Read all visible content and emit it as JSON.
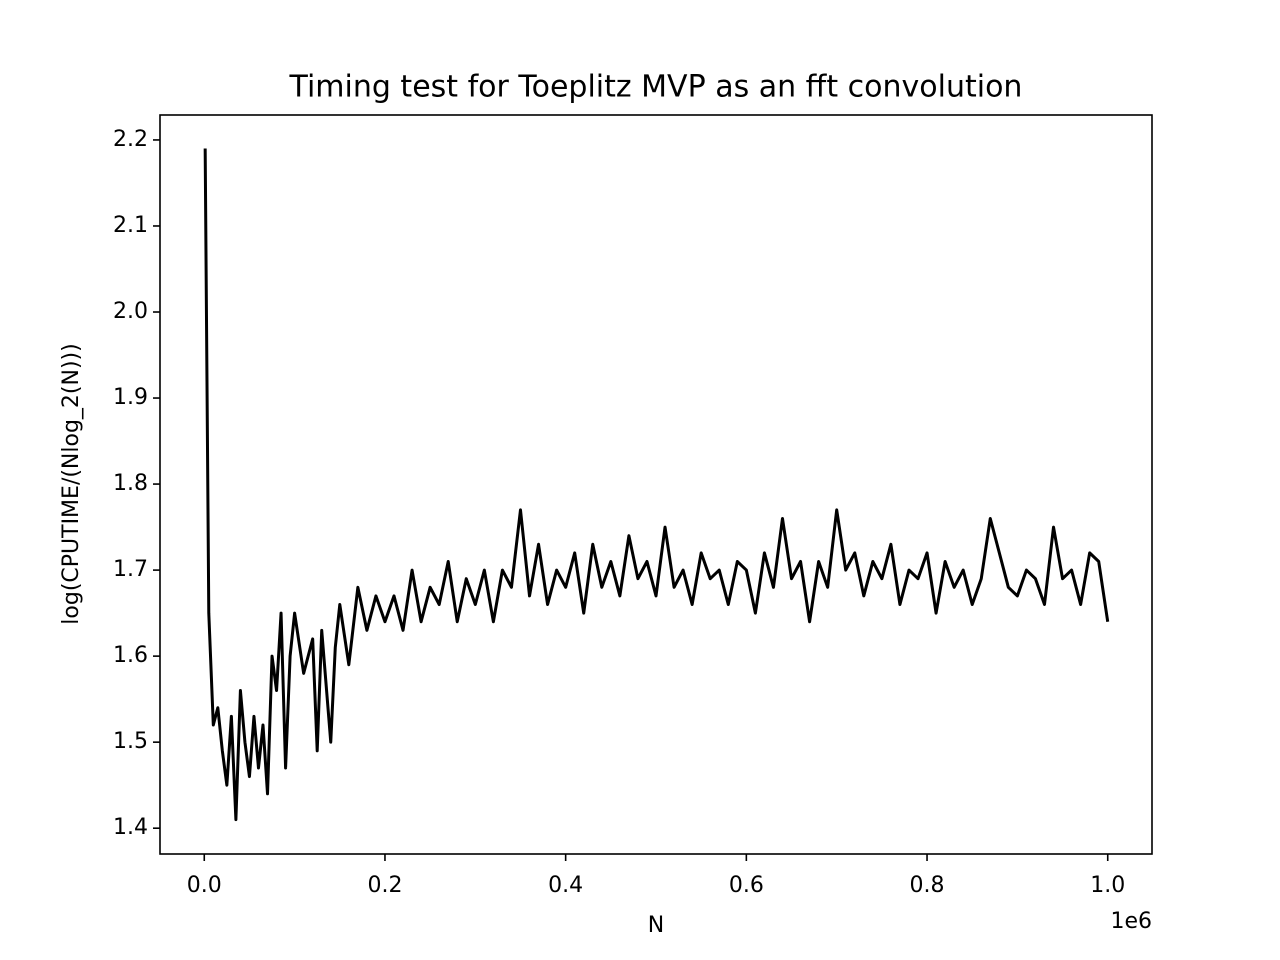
{
  "chart_data": {
    "type": "line",
    "title": "Timing test for Toeplitz MVP as an fft convolution",
    "x_label": "N",
    "y_label": "log(CPUTIME/(Nlog_2(N)))",
    "x_offset_label": "1e6",
    "color": "#000000",
    "x": [
      1000,
      5000,
      10000,
      15000,
      20000,
      25000,
      30000,
      35000,
      40000,
      45000,
      50000,
      55000,
      60000,
      65000,
      70000,
      75000,
      80000,
      85000,
      90000,
      95000,
      100000,
      110000,
      120000,
      125000,
      130000,
      140000,
      145000,
      150000,
      160000,
      170000,
      180000,
      190000,
      200000,
      210000,
      220000,
      230000,
      240000,
      250000,
      260000,
      270000,
      280000,
      290000,
      300000,
      310000,
      320000,
      330000,
      340000,
      350000,
      360000,
      370000,
      380000,
      390000,
      400000,
      410000,
      420000,
      430000,
      440000,
      450000,
      460000,
      470000,
      480000,
      490000,
      500000,
      510000,
      520000,
      530000,
      540000,
      550000,
      560000,
      570000,
      580000,
      590000,
      600000,
      610000,
      620000,
      630000,
      640000,
      650000,
      660000,
      670000,
      680000,
      690000,
      700000,
      710000,
      720000,
      730000,
      740000,
      750000,
      760000,
      770000,
      780000,
      790000,
      800000,
      810000,
      820000,
      830000,
      840000,
      850000,
      860000,
      870000,
      880000,
      890000,
      900000,
      910000,
      920000,
      930000,
      940000,
      950000,
      960000,
      970000,
      980000,
      990000,
      1000000
    ],
    "values": [
      2.19,
      1.65,
      1.52,
      1.54,
      1.49,
      1.45,
      1.53,
      1.41,
      1.56,
      1.5,
      1.46,
      1.53,
      1.47,
      1.52,
      1.44,
      1.6,
      1.56,
      1.65,
      1.47,
      1.6,
      1.65,
      1.58,
      1.62,
      1.49,
      1.63,
      1.5,
      1.61,
      1.66,
      1.59,
      1.68,
      1.63,
      1.67,
      1.64,
      1.67,
      1.63,
      1.7,
      1.64,
      1.68,
      1.66,
      1.71,
      1.64,
      1.69,
      1.66,
      1.7,
      1.64,
      1.7,
      1.68,
      1.77,
      1.67,
      1.73,
      1.66,
      1.7,
      1.68,
      1.72,
      1.65,
      1.73,
      1.68,
      1.71,
      1.67,
      1.74,
      1.69,
      1.71,
      1.67,
      1.75,
      1.68,
      1.7,
      1.66,
      1.72,
      1.69,
      1.7,
      1.66,
      1.71,
      1.7,
      1.65,
      1.72,
      1.68,
      1.76,
      1.69,
      1.71,
      1.64,
      1.71,
      1.68,
      1.77,
      1.7,
      1.72,
      1.67,
      1.71,
      1.69,
      1.73,
      1.66,
      1.7,
      1.69,
      1.72,
      1.65,
      1.71,
      1.68,
      1.7,
      1.66,
      1.69,
      1.76,
      1.72,
      1.68,
      1.67,
      1.7,
      1.69,
      1.66,
      1.75,
      1.69,
      1.7,
      1.66,
      1.72,
      1.71,
      1.64
    ],
    "xlim": [
      -49000,
      1049000
    ],
    "xticks": [
      {
        "value": 0,
        "label": "0.0"
      },
      {
        "value": 200000,
        "label": "0.2"
      },
      {
        "value": 400000,
        "label": "0.4"
      },
      {
        "value": 600000,
        "label": "0.6"
      },
      {
        "value": 800000,
        "label": "0.8"
      },
      {
        "value": 1000000,
        "label": "1.0"
      }
    ],
    "ylim": [
      1.37,
      2.229
    ],
    "yticks": [
      1.4,
      1.5,
      1.6,
      1.7,
      1.8,
      1.9,
      {
        "value": 2,
        "label": "2.0"
      },
      2.1,
      2.2
    ]
  }
}
